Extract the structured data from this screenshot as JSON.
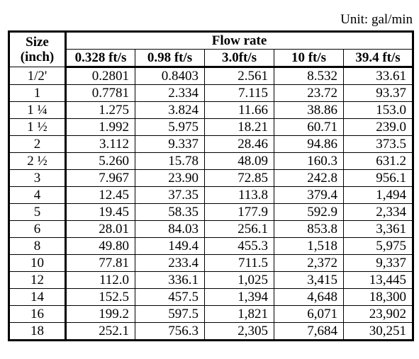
{
  "unit_note": "Unit: gal/min",
  "header": {
    "size_line1": "Size",
    "size_line2": "(inch)",
    "group_label": "Flow rate",
    "columns": [
      "0.328 ft/s",
      "0.98 ft/s",
      "3.0ft/s",
      "10 ft/s",
      "39.4 ft/s"
    ]
  },
  "rows": [
    {
      "size": "1/2'",
      "values": [
        "0.2801",
        "0.8403",
        "2.561",
        "8.532",
        "33.61"
      ]
    },
    {
      "size": "1",
      "values": [
        "0.7781",
        "2.334",
        "7.115",
        "23.72",
        "93.37"
      ]
    },
    {
      "size": "1 ¼",
      "values": [
        "1.275",
        "3.824",
        "11.66",
        "38.86",
        "153.0"
      ]
    },
    {
      "size": "1 ½",
      "values": [
        "1.992",
        "5.975",
        "18.21",
        "60.71",
        "239.0"
      ]
    },
    {
      "size": "2",
      "values": [
        "3.112",
        "9.337",
        "28.46",
        "94.86",
        "373.5"
      ]
    },
    {
      "size": "2 ½",
      "values": [
        "5.260",
        "15.78",
        "48.09",
        "160.3",
        "631.2"
      ]
    },
    {
      "size": "3",
      "values": [
        "7.967",
        "23.90",
        "72.85",
        "242.8",
        "956.1"
      ]
    },
    {
      "size": "4",
      "values": [
        "12.45",
        "37.35",
        "113.8",
        "379.4",
        "1,494"
      ]
    },
    {
      "size": "5",
      "values": [
        "19.45",
        "58.35",
        "177.9",
        "592.9",
        "2,334"
      ]
    },
    {
      "size": "6",
      "values": [
        "28.01",
        "84.03",
        "256.1",
        "853.8",
        "3,361"
      ]
    },
    {
      "size": "8",
      "values": [
        "49.80",
        "149.4",
        "455.3",
        "1,518",
        "5,975"
      ]
    },
    {
      "size": "10",
      "values": [
        "77.81",
        "233.4",
        "711.5",
        "2,372",
        "9,337"
      ]
    },
    {
      "size": "12",
      "values": [
        "112.0",
        "336.1",
        "1,025",
        "3,415",
        "13,445"
      ]
    },
    {
      "size": "14",
      "values": [
        "152.5",
        "457.5",
        "1,394",
        "4,648",
        "18,300"
      ]
    },
    {
      "size": "16",
      "values": [
        "199.2",
        "597.5",
        "1,821",
        "6,071",
        "23,902"
      ]
    },
    {
      "size": "18",
      "values": [
        "252.1",
        "756.3",
        "2,305",
        "7,684",
        "30,251"
      ]
    }
  ]
}
